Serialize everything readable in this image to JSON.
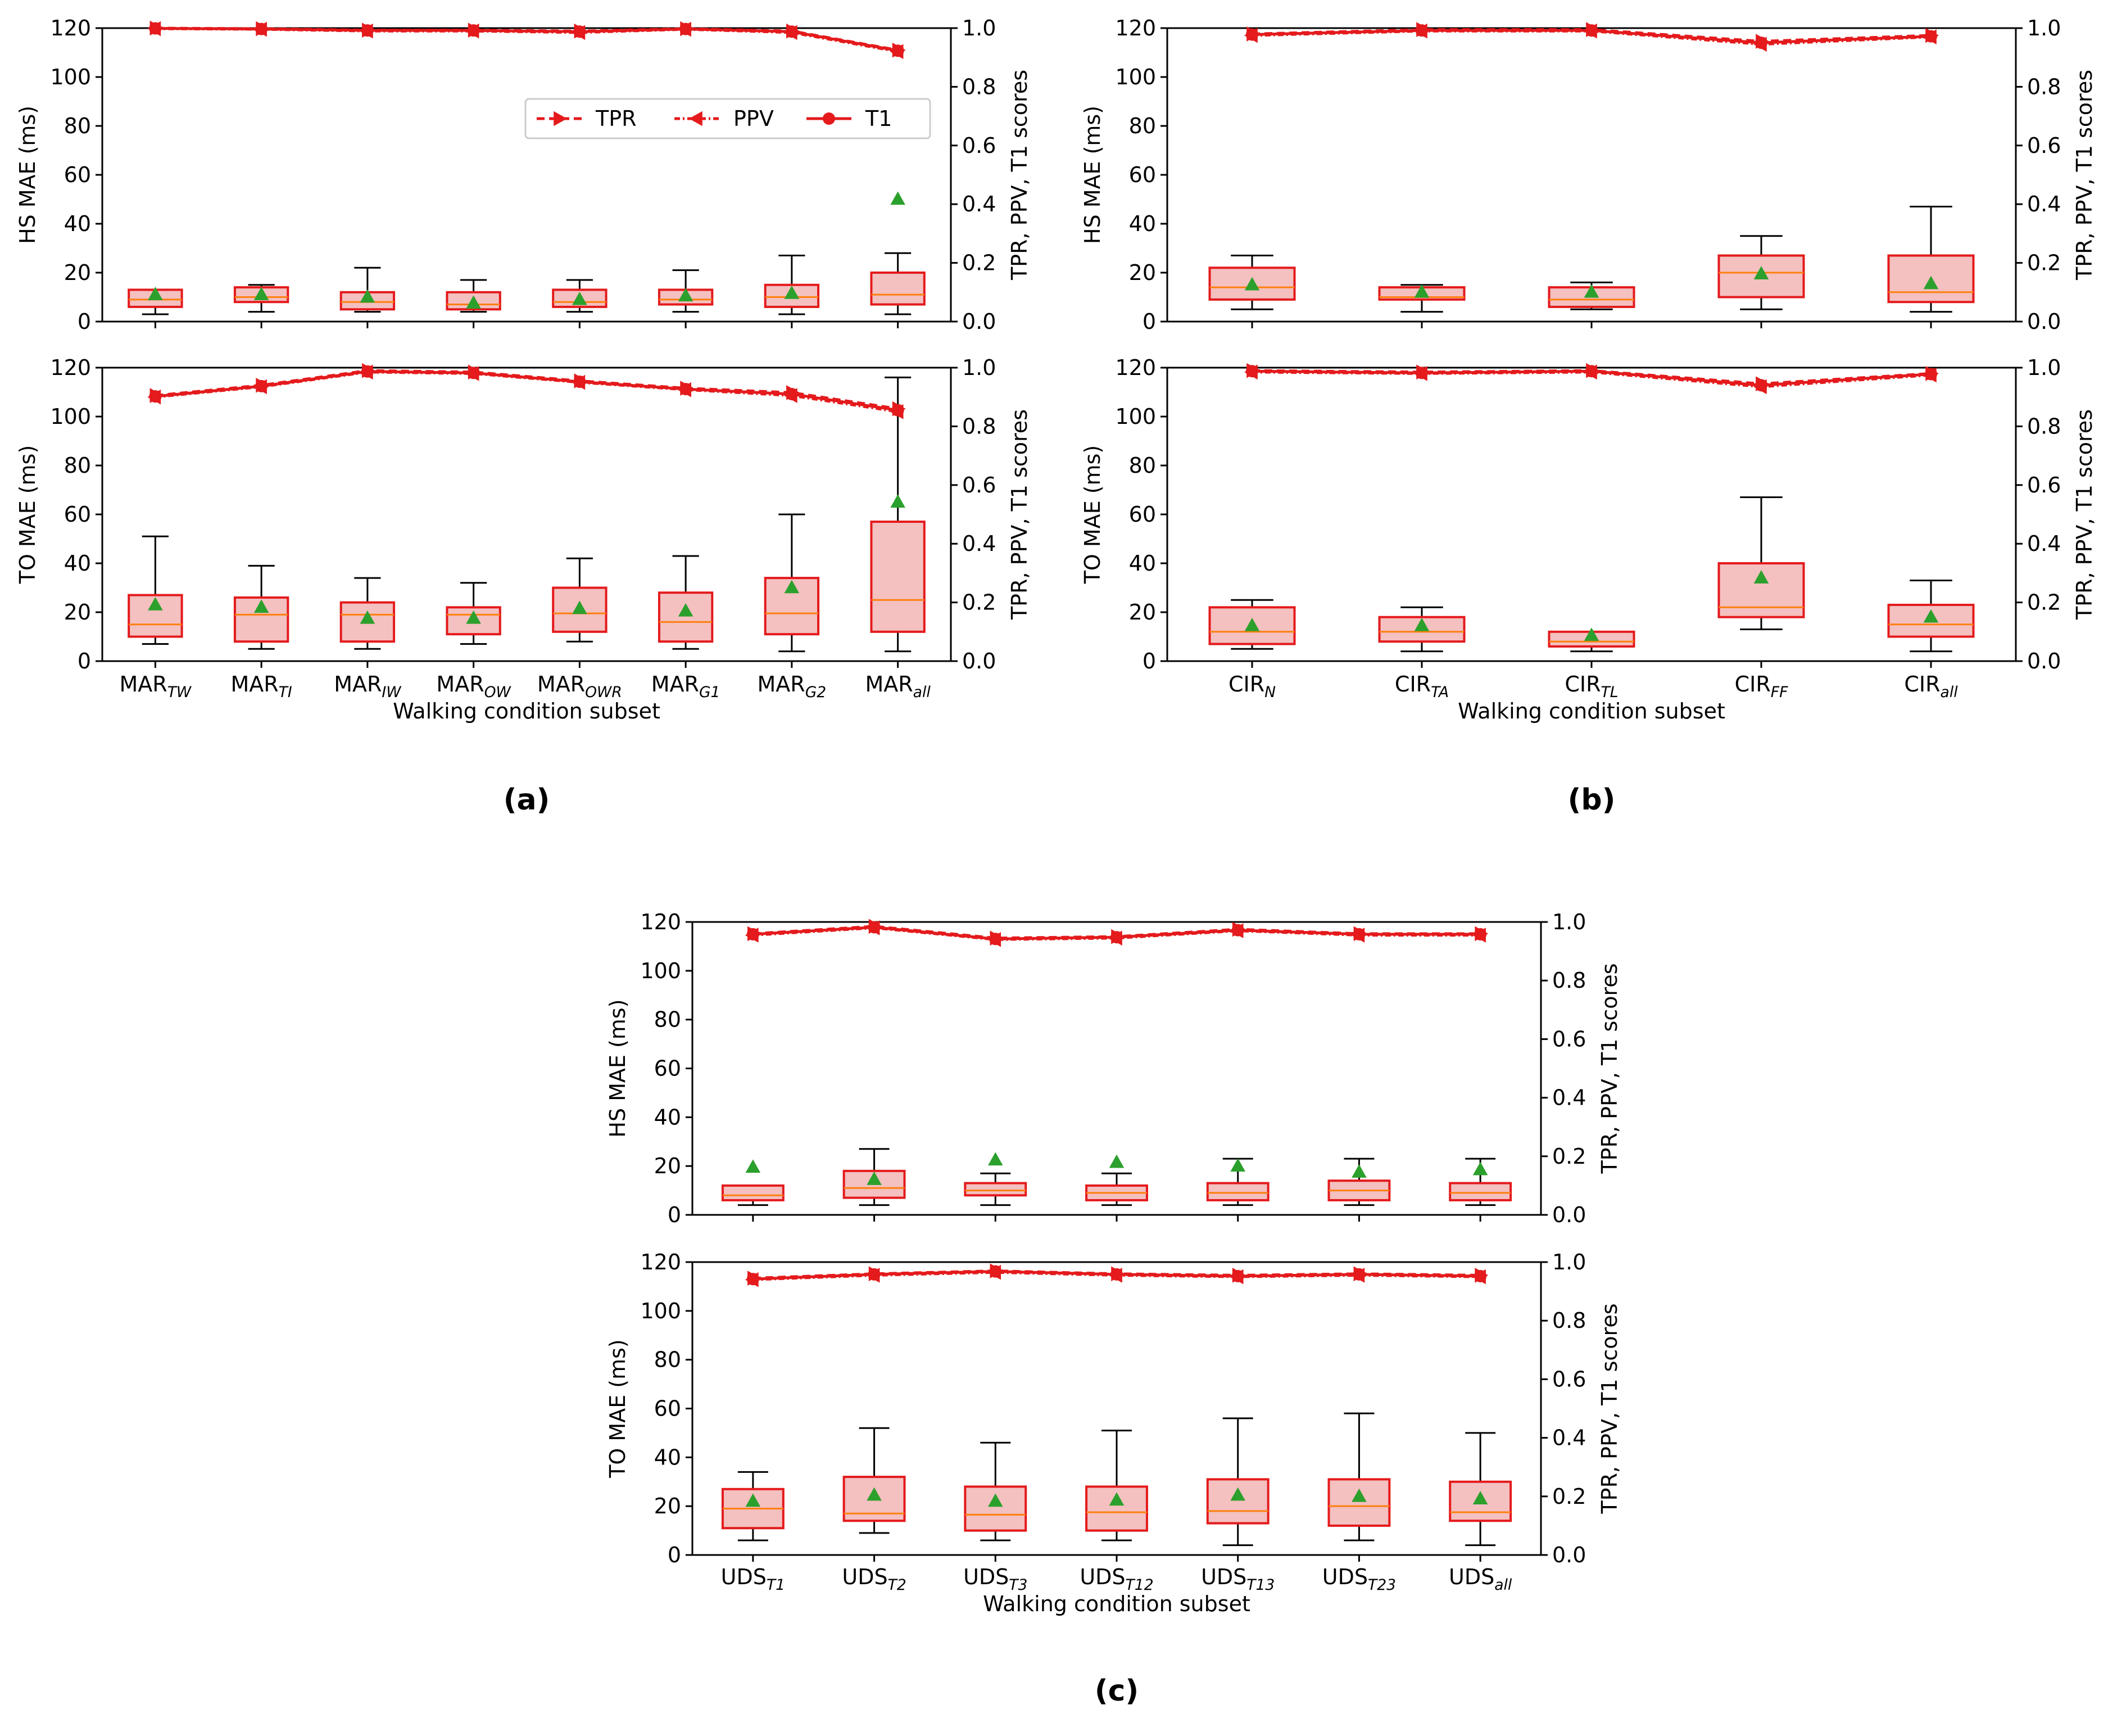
{
  "colors": {
    "line": "#e41a1c",
    "box_edge": "#e41a1c",
    "box_fill": "#f4c0c0",
    "median": "#ff7f0e",
    "mean_marker": "#2ca02c",
    "whisker": "#000000",
    "axis": "#000000"
  },
  "shared": {
    "xlabel": "Walking condition subset",
    "right_ylabel": "TPR, PPV, T1 scores",
    "left_yticks": [
      "0",
      "20",
      "40",
      "60",
      "80",
      "100",
      "120"
    ],
    "right_yticks": [
      "0.0",
      "0.2",
      "0.4",
      "0.6",
      "0.8",
      "1.0"
    ],
    "legend": [
      {
        "label": "TPR",
        "marker": "right-triangle",
        "linestyle": "dashed"
      },
      {
        "label": "PPV",
        "marker": "left-triangle",
        "linestyle": "dashdot"
      },
      {
        "label": "T1",
        "marker": "circle",
        "linestyle": "solid"
      }
    ]
  },
  "panels": [
    {
      "id": "a",
      "caption": "(a)",
      "categories": [
        {
          "base": "MAR",
          "sub": "TW"
        },
        {
          "base": "MAR",
          "sub": "TI"
        },
        {
          "base": "MAR",
          "sub": "IW"
        },
        {
          "base": "MAR",
          "sub": "OW"
        },
        {
          "base": "MAR",
          "sub": "OWR"
        },
        {
          "base": "MAR",
          "sub": "G1"
        },
        {
          "base": "MAR",
          "sub": "G2"
        },
        {
          "base": "MAR",
          "sub": "all"
        }
      ]
    },
    {
      "id": "b",
      "caption": "(b)",
      "categories": [
        {
          "base": "CIR",
          "sub": "N"
        },
        {
          "base": "CIR",
          "sub": "TA"
        },
        {
          "base": "CIR",
          "sub": "TL"
        },
        {
          "base": "CIR",
          "sub": "FF"
        },
        {
          "base": "CIR",
          "sub": "all"
        }
      ]
    },
    {
      "id": "c",
      "caption": "(c)",
      "categories": [
        {
          "base": "UDS",
          "sub": "T1"
        },
        {
          "base": "UDS",
          "sub": "T2"
        },
        {
          "base": "UDS",
          "sub": "T3"
        },
        {
          "base": "UDS",
          "sub": "T12"
        },
        {
          "base": "UDS",
          "sub": "T13"
        },
        {
          "base": "UDS",
          "sub": "T23"
        },
        {
          "base": "UDS",
          "sub": "all"
        }
      ]
    }
  ],
  "chart_data": [
    {
      "type": "box",
      "panel": "a",
      "metric": "HS",
      "ylabel": "HS MAE (ms)",
      "xlabel": "",
      "ylim": [
        0,
        120
      ],
      "y2lim": [
        0,
        1.0
      ],
      "legend_position": "upper-right",
      "box_stats": [
        {
          "whislo": 3,
          "q1": 6,
          "med": 9,
          "q3": 13,
          "whishi": 13,
          "mean": 11,
          "fliers": []
        },
        {
          "whislo": 4,
          "q1": 8,
          "med": 10,
          "q3": 14,
          "whishi": 15,
          "mean": 11,
          "fliers": []
        },
        {
          "whislo": 4,
          "q1": 5,
          "med": 8,
          "q3": 12,
          "whishi": 22,
          "mean": 10,
          "fliers": []
        },
        {
          "whislo": 4,
          "q1": 5,
          "med": 7,
          "q3": 12,
          "whishi": 17,
          "mean": 7.5,
          "fliers": []
        },
        {
          "whislo": 4,
          "q1": 6,
          "med": 8,
          "q3": 13,
          "whishi": 17,
          "mean": 9,
          "fliers": []
        },
        {
          "whislo": 4,
          "q1": 7,
          "med": 9,
          "q3": 13,
          "whishi": 21,
          "mean": 10.5,
          "fliers": []
        },
        {
          "whislo": 3,
          "q1": 6,
          "med": 10,
          "q3": 15,
          "whishi": 27,
          "mean": 11.5,
          "fliers": []
        },
        {
          "whislo": 3,
          "q1": 7,
          "med": 11,
          "q3": 20,
          "whishi": 28,
          "mean": 50,
          "fliers": []
        }
      ],
      "series": [
        {
          "name": "TPR",
          "values": [
            1.0,
            0.998,
            0.993,
            0.993,
            0.99,
            0.998,
            0.99,
            0.925
          ]
        },
        {
          "name": "PPV",
          "values": [
            0.998,
            0.996,
            0.99,
            0.99,
            0.985,
            0.996,
            0.985,
            0.92
          ]
        },
        {
          "name": "T1",
          "values": [
            0.999,
            0.997,
            0.992,
            0.992,
            0.988,
            0.997,
            0.988,
            0.923
          ]
        }
      ]
    },
    {
      "type": "box",
      "panel": "a",
      "metric": "TO",
      "ylabel": "TO MAE (ms)",
      "xlabel": "Walking condition subset",
      "ylim": [
        0,
        120
      ],
      "y2lim": [
        0,
        1.0
      ],
      "box_stats": [
        {
          "whislo": 7,
          "q1": 10,
          "med": 15,
          "q3": 27,
          "whishi": 51,
          "mean": 23,
          "fliers": []
        },
        {
          "whislo": 5,
          "q1": 8,
          "med": 19,
          "q3": 26,
          "whishi": 39,
          "mean": 22,
          "fliers": []
        },
        {
          "whislo": 5,
          "q1": 8,
          "med": 19,
          "q3": 24,
          "whishi": 34,
          "mean": 17.5,
          "fliers": []
        },
        {
          "whislo": 7,
          "q1": 11,
          "med": 19,
          "q3": 22,
          "whishi": 32,
          "mean": 17.5,
          "fliers": []
        },
        {
          "whislo": 8,
          "q1": 12,
          "med": 19.5,
          "q3": 30,
          "whishi": 42,
          "mean": 21.5,
          "fliers": []
        },
        {
          "whislo": 5,
          "q1": 8,
          "med": 16,
          "q3": 28,
          "whishi": 43,
          "mean": 20.5,
          "fliers": []
        },
        {
          "whislo": 4,
          "q1": 11,
          "med": 19.5,
          "q3": 34,
          "whishi": 60,
          "mean": 30,
          "fliers": []
        },
        {
          "whislo": 4,
          "q1": 12,
          "med": 25,
          "q3": 57,
          "whishi": 116,
          "mean": 65,
          "fliers": []
        }
      ],
      "series": [
        {
          "name": "TPR",
          "values": [
            0.905,
            0.94,
            0.99,
            0.985,
            0.955,
            0.93,
            0.915,
            0.86
          ]
        },
        {
          "name": "PPV",
          "values": [
            0.9,
            0.935,
            0.985,
            0.98,
            0.95,
            0.925,
            0.905,
            0.85
          ]
        },
        {
          "name": "T1",
          "values": [
            0.902,
            0.937,
            0.987,
            0.982,
            0.952,
            0.927,
            0.91,
            0.855
          ]
        }
      ]
    },
    {
      "type": "box",
      "panel": "b",
      "metric": "HS",
      "ylabel": "HS MAE (ms)",
      "xlabel": "",
      "ylim": [
        0,
        120
      ],
      "y2lim": [
        0,
        1.0
      ],
      "box_stats": [
        {
          "whislo": 5,
          "q1": 9,
          "med": 14,
          "q3": 22,
          "whishi": 27,
          "mean": 15,
          "fliers": []
        },
        {
          "whislo": 4,
          "q1": 9,
          "med": 10,
          "q3": 14,
          "whishi": 15,
          "mean": 12,
          "fliers": []
        },
        {
          "whislo": 5,
          "q1": 6,
          "med": 9,
          "q3": 14,
          "whishi": 16,
          "mean": 12,
          "fliers": []
        },
        {
          "whislo": 5,
          "q1": 10,
          "med": 20,
          "q3": 27,
          "whishi": 35,
          "mean": 19.5,
          "fliers": []
        },
        {
          "whislo": 4,
          "q1": 8,
          "med": 12,
          "q3": 27,
          "whishi": 47,
          "mean": 15.5,
          "fliers": []
        }
      ],
      "series": [
        {
          "name": "TPR",
          "values": [
            0.98,
            0.995,
            0.995,
            0.955,
            0.975
          ]
        },
        {
          "name": "PPV",
          "values": [
            0.975,
            0.99,
            0.99,
            0.945,
            0.97
          ]
        },
        {
          "name": "T1",
          "values": [
            0.978,
            0.992,
            0.992,
            0.95,
            0.972
          ]
        }
      ]
    },
    {
      "type": "box",
      "panel": "b",
      "metric": "TO",
      "ylabel": "TO MAE (ms)",
      "xlabel": "Walking condition subset",
      "ylim": [
        0,
        120
      ],
      "y2lim": [
        0,
        1.0
      ],
      "box_stats": [
        {
          "whislo": 5,
          "q1": 7,
          "med": 12,
          "q3": 22,
          "whishi": 25,
          "mean": 14.5,
          "fliers": []
        },
        {
          "whislo": 4,
          "q1": 8,
          "med": 12,
          "q3": 18,
          "whishi": 22,
          "mean": 14.5,
          "fliers": []
        },
        {
          "whislo": 4,
          "q1": 6,
          "med": 8,
          "q3": 12,
          "whishi": 12,
          "mean": 10.5,
          "fliers": []
        },
        {
          "whislo": 13,
          "q1": 18,
          "med": 22,
          "q3": 40,
          "whishi": 67,
          "mean": 34,
          "fliers": []
        },
        {
          "whislo": 4,
          "q1": 10,
          "med": 15,
          "q3": 23,
          "whishi": 33,
          "mean": 18,
          "fliers": []
        }
      ],
      "series": [
        {
          "name": "TPR",
          "values": [
            0.99,
            0.985,
            0.99,
            0.945,
            0.98
          ]
        },
        {
          "name": "PPV",
          "values": [
            0.985,
            0.98,
            0.985,
            0.935,
            0.975
          ]
        },
        {
          "name": "T1",
          "values": [
            0.988,
            0.982,
            0.988,
            0.94,
            0.978
          ]
        }
      ]
    },
    {
      "type": "box",
      "panel": "c",
      "metric": "HS",
      "ylabel": "HS MAE (ms)",
      "xlabel": "",
      "ylim": [
        0,
        120
      ],
      "y2lim": [
        0,
        1.0
      ],
      "box_stats": [
        {
          "whislo": 4,
          "q1": 6,
          "med": 8,
          "q3": 12,
          "whishi": 12,
          "mean": 19.5,
          "fliers": []
        },
        {
          "whislo": 4,
          "q1": 7,
          "med": 11,
          "q3": 18,
          "whishi": 27,
          "mean": 14.5,
          "fliers": []
        },
        {
          "whislo": 4,
          "q1": 8,
          "med": 10,
          "q3": 13,
          "whishi": 17,
          "mean": 22.5,
          "fliers": []
        },
        {
          "whislo": 4,
          "q1": 6,
          "med": 9,
          "q3": 12,
          "whishi": 17,
          "mean": 21.5,
          "fliers": []
        },
        {
          "whislo": 4,
          "q1": 6,
          "med": 9,
          "q3": 13,
          "whishi": 23,
          "mean": 20,
          "fliers": []
        },
        {
          "whislo": 4,
          "q1": 6,
          "med": 10,
          "q3": 14,
          "whishi": 23,
          "mean": 17.5,
          "fliers": []
        },
        {
          "whislo": 4,
          "q1": 6,
          "med": 9,
          "q3": 13,
          "whishi": 23,
          "mean": 18.5,
          "fliers": []
        }
      ],
      "series": [
        {
          "name": "TPR",
          "values": [
            0.96,
            0.985,
            0.945,
            0.95,
            0.975,
            0.96,
            0.96
          ]
        },
        {
          "name": "PPV",
          "values": [
            0.955,
            0.98,
            0.94,
            0.945,
            0.97,
            0.955,
            0.955
          ]
        },
        {
          "name": "T1",
          "values": [
            0.958,
            0.982,
            0.942,
            0.948,
            0.972,
            0.958,
            0.958
          ]
        }
      ]
    },
    {
      "type": "box",
      "panel": "c",
      "metric": "TO",
      "ylabel": "TO MAE (ms)",
      "xlabel": "Walking condition subset",
      "ylim": [
        0,
        120
      ],
      "y2lim": [
        0,
        1.0
      ],
      "box_stats": [
        {
          "whislo": 6,
          "q1": 11,
          "med": 19,
          "q3": 27,
          "whishi": 34,
          "mean": 22,
          "fliers": []
        },
        {
          "whislo": 9,
          "q1": 14,
          "med": 17,
          "q3": 32,
          "whishi": 52,
          "mean": 24.5,
          "fliers": []
        },
        {
          "whislo": 6,
          "q1": 10,
          "med": 16.5,
          "q3": 28,
          "whishi": 46,
          "mean": 22,
          "fliers": []
        },
        {
          "whislo": 6,
          "q1": 10,
          "med": 17.5,
          "q3": 28,
          "whishi": 51,
          "mean": 22.5,
          "fliers": []
        },
        {
          "whislo": 4,
          "q1": 13,
          "med": 18,
          "q3": 31,
          "whishi": 56,
          "mean": 24.5,
          "fliers": []
        },
        {
          "whislo": 6,
          "q1": 12,
          "med": 20,
          "q3": 31,
          "whishi": 58,
          "mean": 24,
          "fliers": []
        },
        {
          "whislo": 4,
          "q1": 14,
          "med": 17.5,
          "q3": 30,
          "whishi": 50,
          "mean": 23,
          "fliers": []
        }
      ],
      "series": [
        {
          "name": "TPR",
          "values": [
            0.945,
            0.96,
            0.97,
            0.96,
            0.955,
            0.96,
            0.955
          ]
        },
        {
          "name": "PPV",
          "values": [
            0.94,
            0.955,
            0.965,
            0.955,
            0.95,
            0.955,
            0.95
          ]
        },
        {
          "name": "T1",
          "values": [
            0.942,
            0.958,
            0.968,
            0.958,
            0.952,
            0.958,
            0.952
          ]
        }
      ]
    }
  ]
}
